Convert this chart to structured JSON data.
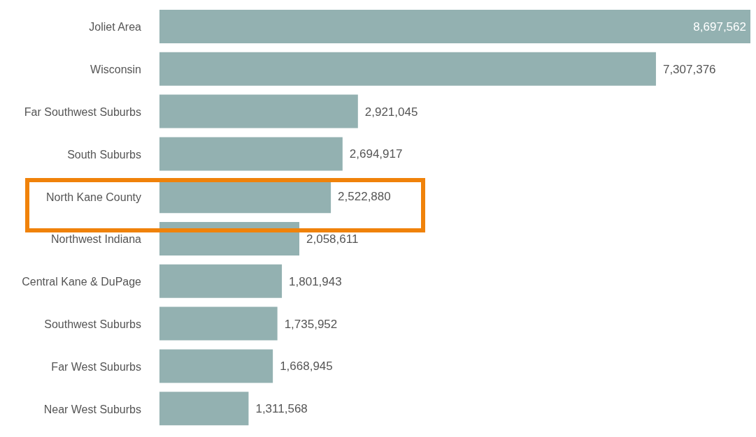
{
  "chart_data": {
    "type": "bar",
    "orientation": "horizontal",
    "categories": [
      "Joliet Area",
      "Wisconsin",
      "Far Southwest Suburbs",
      "South Suburbs",
      "North Kane County",
      "Northwest Indiana",
      "Central Kane & DuPage",
      "Southwest Suburbs",
      "Far West Suburbs",
      "Near West Suburbs"
    ],
    "values": [
      8697562,
      7307376,
      2921045,
      2694917,
      2522880,
      2058611,
      1801943,
      1735952,
      1668945,
      1311568
    ],
    "color": "#93b1b1",
    "value_labels": [
      "8,697,562",
      "7,307,376",
      "2,921,045",
      "2,694,917",
      "2,522,880",
      "2,058,611",
      "1,801,943",
      "1,735,952",
      "1,668,945",
      "1,311,568"
    ],
    "tick_labels": "y",
    "legend": false
  }
}
